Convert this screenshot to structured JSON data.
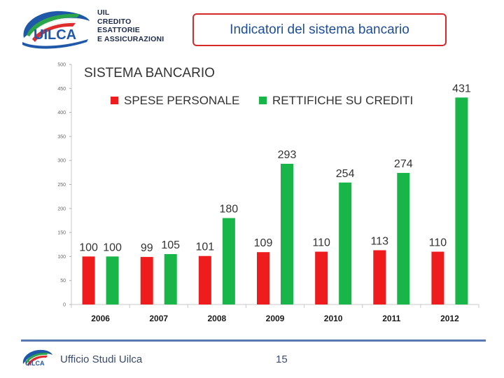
{
  "header": {
    "logo_lines": [
      "UIL",
      "CREDITO",
      "ESATTORIE",
      "E ASSICURAZIONI"
    ],
    "logo_wordmark": "UILCA",
    "title": "Indicatori del sistema bancario"
  },
  "chart_data": {
    "type": "bar",
    "title": "SISTEMA BANCARIO",
    "categories": [
      "2006",
      "2007",
      "2008",
      "2009",
      "2010",
      "2011",
      "2012"
    ],
    "series": [
      {
        "name": "SPESE PERSONALE",
        "color": "#ee1c1c",
        "values": [
          100,
          99,
          101,
          109,
          110,
          113,
          110
        ]
      },
      {
        "name": "RETTIFICHE SU CREDITI",
        "color": "#18b548",
        "values": [
          100,
          105,
          180,
          293,
          254,
          274,
          431
        ]
      }
    ],
    "ylim": [
      0,
      500
    ],
    "yticks": [
      "0",
      "50",
      "100",
      "150",
      "200",
      "250",
      "300",
      "350",
      "400",
      "450",
      "500"
    ],
    "grid": false,
    "legend_position": "top"
  },
  "footer": {
    "label": "Ufficio Studi Uilca",
    "page_number": "15",
    "logo_wordmark": "UILCA"
  }
}
